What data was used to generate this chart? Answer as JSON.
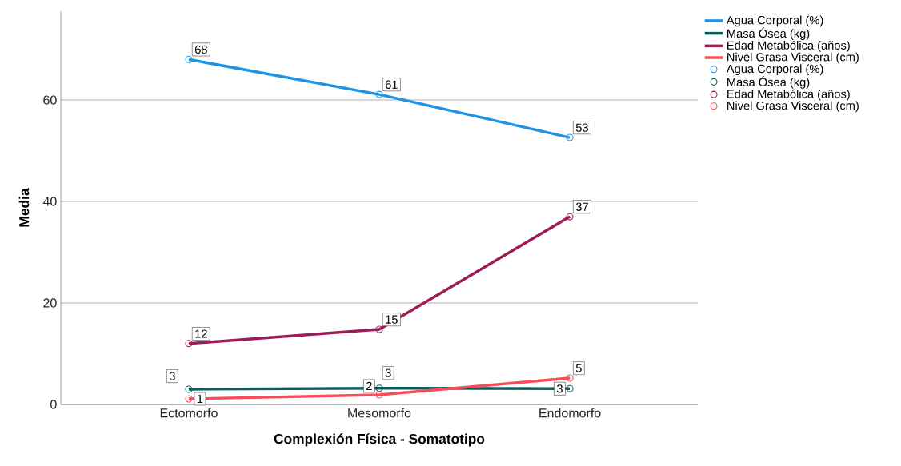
{
  "chart_data": {
    "type": "line",
    "xlabel": "Complexión Física - Somatotipo",
    "ylabel": "Media",
    "categories": [
      "Ectomorfo",
      "Mesomorfo",
      "Endomorfo"
    ],
    "ylim": [
      0,
      77.5
    ],
    "yticks": [
      0,
      20,
      40,
      60
    ],
    "grid": "y",
    "legend": "top right",
    "line_style": "solid",
    "series": [
      {
        "name": "Agua Corporal (%)",
        "color": "#1f94e6",
        "marker": "none",
        "values": [
          68.0,
          61.1,
          52.6
        ]
      },
      {
        "name": "Masa Ósea (kg)",
        "color": "#0b5f5a",
        "marker": "none",
        "values": [
          3.0,
          3.2,
          3.1
        ]
      },
      {
        "name": "Edad Metabólica (años)",
        "color": "#9c1c57",
        "marker": "none",
        "values": [
          12.0,
          14.8,
          37.0
        ]
      },
      {
        "name": "Nivel Grasa Visceral (cm)",
        "color": "#fb4b58",
        "marker": "none",
        "values": [
          1.1,
          1.9,
          5.2
        ]
      },
      {
        "name": "Agua Corporal (%)",
        "color": "#1f94e6",
        "type": "scatter",
        "marker": "circle",
        "values": [
          68.0,
          61.1,
          52.6
        ],
        "value_labels": [
          "68",
          "61",
          "53"
        ]
      },
      {
        "name": "Masa Ósea (kg)",
        "color": "#0b5f5a",
        "type": "scatter",
        "marker": "circle",
        "values": [
          3.0,
          3.2,
          3.1
        ],
        "value_labels": [
          "3",
          "3",
          "3"
        ]
      },
      {
        "name": "Edad Metabólica (años)",
        "color": "#9c1c57",
        "type": "scatter",
        "marker": "circle",
        "values": [
          12.0,
          14.8,
          37.0
        ],
        "value_labels": [
          "12",
          "15",
          "37"
        ]
      },
      {
        "name": "Nivel Grasa Visceral (cm)",
        "color": "#fb4b58",
        "type": "scatter",
        "marker": "circle",
        "values": [
          1.1,
          1.9,
          5.2
        ],
        "value_labels": [
          "1",
          "2",
          "5"
        ]
      }
    ]
  }
}
